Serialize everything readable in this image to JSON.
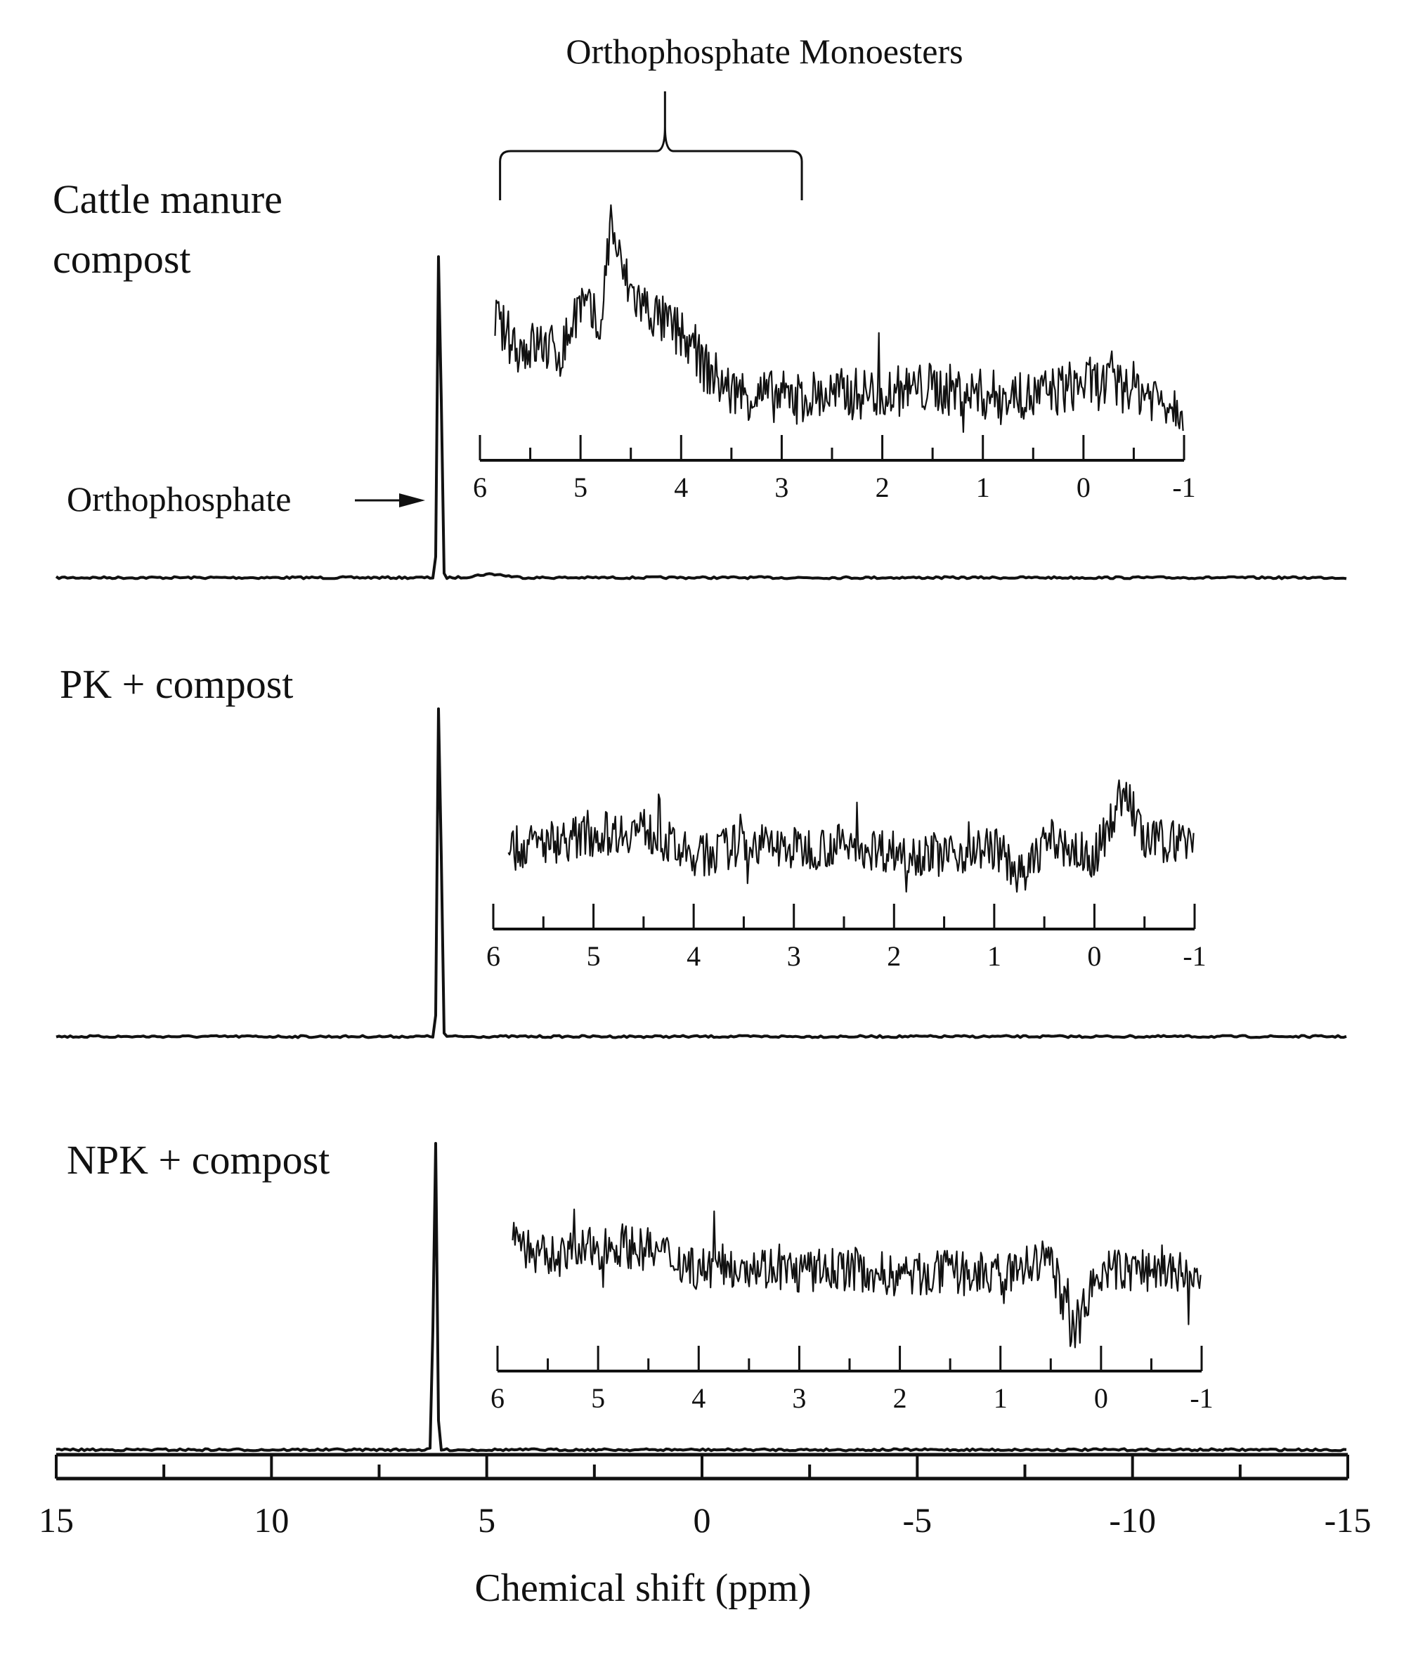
{
  "chart_data": {
    "type": "line",
    "xlabel": "Chemical shift (ppm)",
    "x_ticks": [
      "15",
      "10",
      "5",
      "0",
      "-5",
      "-10",
      "-15"
    ],
    "xlim": [
      15,
      -15
    ],
    "x_reversed": true,
    "annotations": {
      "peak_label": "Orthophosphate",
      "region_label": "Orthophosphate Monoesters",
      "region_range_ppm": [
        5.8,
        2.8
      ]
    },
    "inset_ticks": [
      "6",
      "5",
      "4",
      "3",
      "2",
      "1",
      "0",
      "-1"
    ],
    "inset_xlim": [
      6,
      -1
    ],
    "series": [
      {
        "name": "Cattle manure compost",
        "peak_ppm": 6.1,
        "x": [
          6,
          5.9,
          5.8,
          5.6,
          5.4,
          5.2,
          5.0,
          4.8,
          4.7,
          4.6,
          4.5,
          4.4,
          4.2,
          4.0,
          3.8,
          3.5,
          3.0,
          2.5,
          2.0,
          1.5,
          1.0,
          0.5,
          0.0,
          -0.5,
          -1.0
        ],
        "y": [
          0.95,
          0.55,
          0.45,
          0.36,
          0.38,
          0.34,
          0.55,
          0.45,
          0.9,
          0.7,
          0.6,
          0.55,
          0.48,
          0.42,
          0.3,
          0.18,
          0.16,
          0.17,
          0.18,
          0.2,
          0.17,
          0.16,
          0.22,
          0.2,
          0.12
        ]
      },
      {
        "name": "PK + compost",
        "peak_ppm": 6.1,
        "x": [
          6,
          5.9,
          5.8,
          5.5,
          5.0,
          4.5,
          4.0,
          3.5,
          3.0,
          2.5,
          2.0,
          1.5,
          1.0,
          0.7,
          0.5,
          0.0,
          -0.3,
          -0.5,
          -1.0
        ],
        "y": [
          1.0,
          0.4,
          0.25,
          0.28,
          0.32,
          0.35,
          0.2,
          0.28,
          0.25,
          0.27,
          0.24,
          0.22,
          0.26,
          0.1,
          0.3,
          0.2,
          0.55,
          0.28,
          0.3
        ]
      },
      {
        "name": "NPK + compost",
        "peak_ppm": 6.2,
        "x": [
          6,
          5.8,
          5.6,
          5.2,
          4.8,
          4.4,
          4.0,
          3.5,
          3.0,
          2.5,
          2.0,
          1.5,
          1.0,
          0.5,
          0.3,
          0.0,
          -0.5,
          -1.0
        ],
        "y": [
          0.85,
          0.55,
          0.45,
          0.48,
          0.52,
          0.48,
          0.4,
          0.42,
          0.38,
          0.4,
          0.36,
          0.38,
          0.36,
          0.45,
          0.1,
          0.38,
          0.4,
          0.35
        ]
      }
    ]
  }
}
